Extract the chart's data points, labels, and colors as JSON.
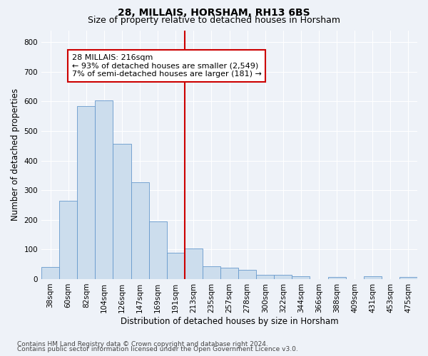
{
  "title": "28, MILLAIS, HORSHAM, RH13 6BS",
  "subtitle": "Size of property relative to detached houses in Horsham",
  "xlabel": "Distribution of detached houses by size in Horsham",
  "ylabel": "Number of detached properties",
  "footnote1": "Contains HM Land Registry data © Crown copyright and database right 2024.",
  "footnote2": "Contains public sector information licensed under the Open Government Licence v3.0.",
  "bar_labels": [
    "38sqm",
    "60sqm",
    "82sqm",
    "104sqm",
    "126sqm",
    "147sqm",
    "169sqm",
    "191sqm",
    "213sqm",
    "235sqm",
    "257sqm",
    "278sqm",
    "300sqm",
    "322sqm",
    "344sqm",
    "366sqm",
    "388sqm",
    "409sqm",
    "431sqm",
    "453sqm",
    "475sqm"
  ],
  "bar_values": [
    40,
    265,
    583,
    603,
    456,
    328,
    195,
    90,
    103,
    43,
    38,
    32,
    15,
    14,
    10,
    0,
    7,
    0,
    10,
    0,
    7
  ],
  "bar_color": "#ccdded",
  "bar_edge_color": "#6699cc",
  "vline_color": "#cc0000",
  "annotation_text": "28 MILLAIS: 216sqm\n← 93% of detached houses are smaller (2,549)\n7% of semi-detached houses are larger (181) →",
  "annotation_box_color": "#cc0000",
  "ylim": [
    0,
    840
  ],
  "yticks": [
    0,
    100,
    200,
    300,
    400,
    500,
    600,
    700,
    800
  ],
  "bg_color": "#eef2f8",
  "grid_color": "#ffffff",
  "title_fontsize": 10,
  "subtitle_fontsize": 9,
  "axis_label_fontsize": 8.5,
  "tick_fontsize": 7.5,
  "annotation_fontsize": 8,
  "footnote_fontsize": 6.5
}
